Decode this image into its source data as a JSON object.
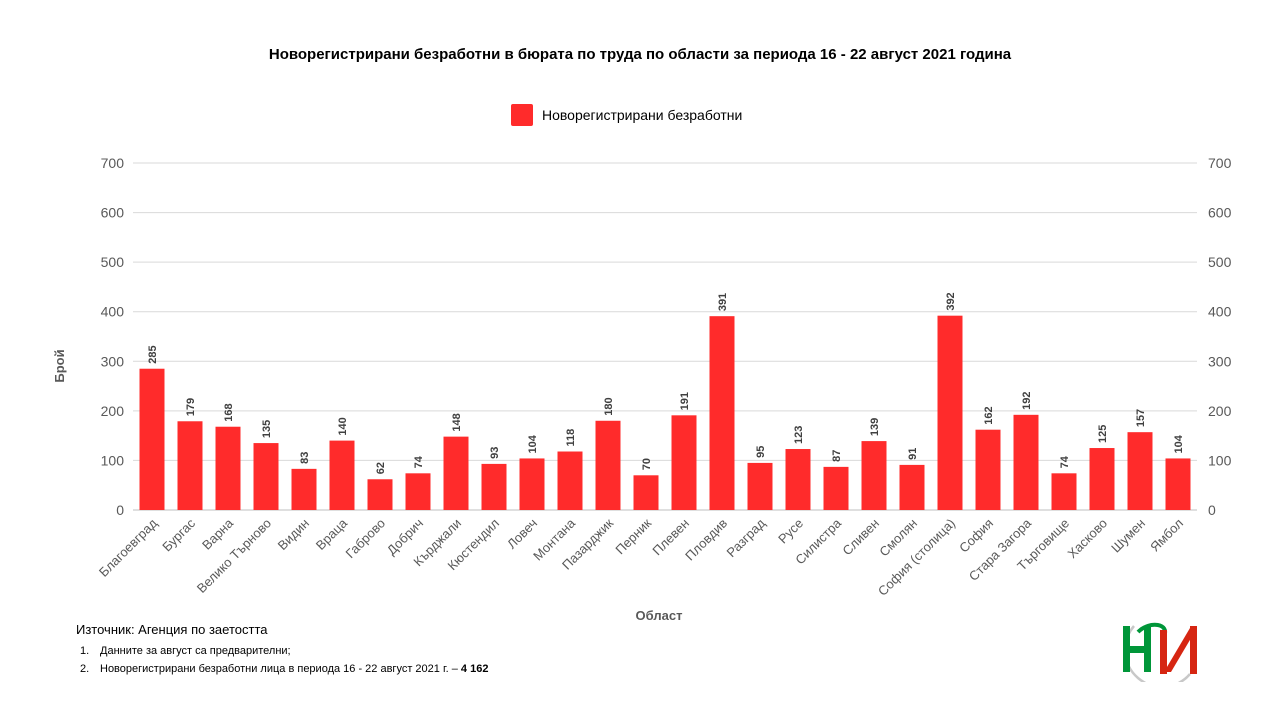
{
  "title": "Новорегистрирани безработни в бюрата по труда по области за периода 16 - 22 август 2021 година",
  "legend": {
    "label": "Новорегистрирани безработни",
    "color": "#ff2b2b"
  },
  "source": "Източник: Агенция по заетостта",
  "notes": [
    {
      "num": "1.",
      "text": "Данните за август са предварителни;",
      "bold": ""
    },
    {
      "num": "2.",
      "text": "Новорегистрирани безработни лица в периода 16 - 22 август 2021 г. – ",
      "bold": "4 162"
    }
  ],
  "colors": {
    "bar": "#ff2b2b",
    "grid": "#d9d9d9",
    "axis_text": "#595959"
  },
  "logo": {
    "icon": "nsi-logo",
    "colors": [
      "#009639",
      "#d62612"
    ]
  },
  "chart_data": {
    "type": "bar",
    "title": "Новорегистрирани безработни в бюрата по труда по области за периода 16 - 22 август 2021 година",
    "xlabel": "Област",
    "ylabel": "Брой",
    "ylim": [
      0,
      700
    ],
    "yticks": [
      0,
      100,
      200,
      300,
      400,
      500,
      600,
      700
    ],
    "secondary_axis": true,
    "grid": true,
    "legend_position": "top",
    "categories": [
      "Благоевград",
      "Бургас",
      "Варна",
      "Велико Търново",
      "Видин",
      "Враца",
      "Габрово",
      "Добрич",
      "Кърджали",
      "Кюстендил",
      "Ловеч",
      "Монтана",
      "Пазарджик",
      "Перник",
      "Плевен",
      "Пловдив",
      "Разград",
      "Русе",
      "Силистра",
      "Сливен",
      "Смолян",
      "София (столица)",
      "София",
      "Стара Загора",
      "Търговище",
      "Хасково",
      "Шумен",
      "Ямбол"
    ],
    "series": [
      {
        "name": "Новорегистрирани безработни",
        "values": [
          285,
          179,
          168,
          135,
          83,
          140,
          62,
          74,
          148,
          93,
          104,
          118,
          180,
          70,
          191,
          391,
          95,
          123,
          87,
          139,
          91,
          392,
          162,
          192,
          74,
          125,
          157,
          104
        ]
      }
    ]
  }
}
